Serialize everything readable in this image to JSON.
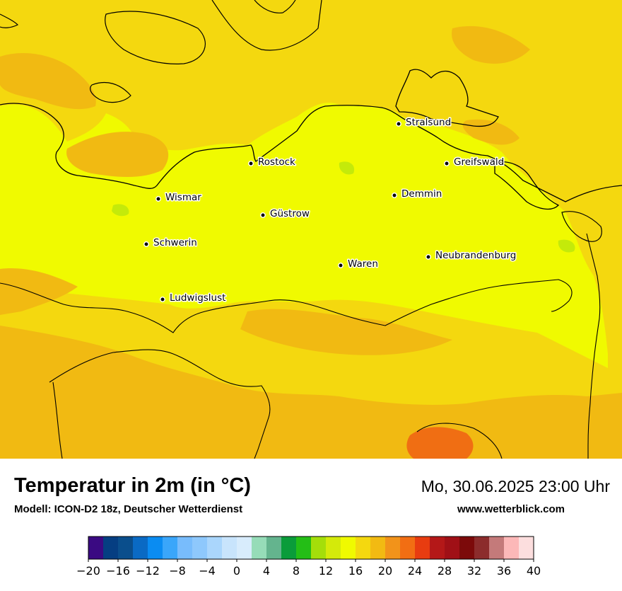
{
  "map": {
    "cities": [
      {
        "name": "Stralsund"
      },
      {
        "name": "Rostock"
      },
      {
        "name": "Greifswald"
      },
      {
        "name": "Wismar"
      },
      {
        "name": "Demmin"
      },
      {
        "name": "Güstrow"
      },
      {
        "name": "Schwerin"
      },
      {
        "name": "Neubrandenburg"
      },
      {
        "name": "Waren"
      },
      {
        "name": "Ludwigslust"
      }
    ],
    "field_colors": {
      "sea": "#f4d80f",
      "land_main": "#f0fa00",
      "land_warm": "#f1ba12",
      "hot_spot": "#f06e13",
      "cool_spot": "#c4ea0a"
    }
  },
  "footer": {
    "title": "Temperatur in 2m (in °C)",
    "subtitle": "Modell: ICON-D2 18z, Deutscher Wetterdienst",
    "datetime": "Mo, 30.06.2025 23:00 Uhr",
    "website": "www.wetterblick.com"
  },
  "colorbar": {
    "min": -20,
    "max": 40,
    "step": 2,
    "ticks": [
      "−20",
      "−16",
      "−12",
      "−8",
      "−4",
      "0",
      "4",
      "8",
      "12",
      "16",
      "20",
      "24",
      "28",
      "32",
      "36",
      "40"
    ],
    "colors": [
      "#3a0a82",
      "#053e82",
      "#0a4e8c",
      "#0a6ac4",
      "#0a8cf2",
      "#3aa6fa",
      "#78bcfc",
      "#8ec8fc",
      "#aad6fc",
      "#c8e4fc",
      "#d8ecfc",
      "#96dcb8",
      "#64b48e",
      "#0a9c3a",
      "#24be16",
      "#a4de0a",
      "#d4ea0a",
      "#f0fa00",
      "#f4d80f",
      "#f2ba12",
      "#f2931a",
      "#f26e13",
      "#e83c10",
      "#b41818",
      "#a01016",
      "#7c0a0a",
      "#8c2c2c",
      "#c47a7a",
      "#fcb8b8",
      "#fcdede"
    ]
  }
}
